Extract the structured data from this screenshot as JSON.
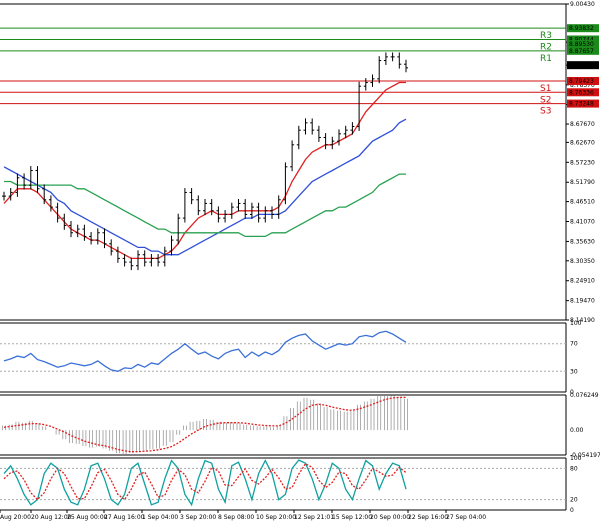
{
  "chart_data": [
    {
      "type": "line",
      "panel": "price",
      "y_ticks": [
        "9.00430",
        "8.9",
        "8.83740",
        "8.78370",
        "8.73010",
        "8.67670",
        "8.62670",
        "8.57230",
        "8.51790",
        "8.46510",
        "8.41070",
        "8.35630",
        "8.30350",
        "8.24910",
        "8.19470",
        "8.14190"
      ],
      "ylim": [
        8.1419,
        9.0043
      ],
      "x": [
        0,
        1,
        2,
        3,
        4,
        5,
        6,
        7,
        8,
        9,
        10,
        11,
        12,
        13,
        14,
        15,
        16,
        17,
        18,
        19,
        20,
        21,
        22,
        23,
        24,
        25,
        26,
        27,
        28,
        29,
        30,
        31,
        32,
        33,
        34,
        35,
        36,
        37,
        38,
        39,
        40,
        41,
        42,
        43,
        44,
        45,
        46,
        47,
        48,
        49,
        50,
        51,
        52,
        53,
        54,
        55,
        56,
        57,
        58,
        59,
        60
      ],
      "series": [
        {
          "role": "price",
          "color": "#000000",
          "values": [
            8.48,
            8.49,
            8.53,
            8.51,
            8.55,
            8.5,
            8.47,
            8.45,
            8.42,
            8.4,
            8.38,
            8.39,
            8.37,
            8.36,
            8.38,
            8.35,
            8.33,
            8.31,
            8.3,
            8.29,
            8.32,
            8.3,
            8.31,
            8.3,
            8.33,
            8.36,
            8.42,
            8.49,
            8.47,
            8.44,
            8.46,
            8.44,
            8.42,
            8.43,
            8.45,
            8.46,
            8.43,
            8.45,
            8.42,
            8.44,
            8.43,
            8.47,
            8.56,
            8.62,
            8.66,
            8.68,
            8.66,
            8.64,
            8.62,
            8.63,
            8.65,
            8.66,
            8.67,
            8.78,
            8.79,
            8.8,
            8.85,
            8.86,
            8.86,
            8.84,
            8.83
          ]
        },
        {
          "role": "ma-fast",
          "color": "#e02020",
          "values": [
            8.46,
            8.48,
            8.5,
            8.5,
            8.5,
            8.49,
            8.47,
            8.45,
            8.43,
            8.41,
            8.39,
            8.38,
            8.37,
            8.36,
            8.36,
            8.35,
            8.34,
            8.33,
            8.32,
            8.31,
            8.31,
            8.31,
            8.31,
            8.31,
            8.32,
            8.33,
            8.35,
            8.38,
            8.4,
            8.42,
            8.43,
            8.44,
            8.43,
            8.43,
            8.43,
            8.44,
            8.44,
            8.44,
            8.44,
            8.44,
            8.44,
            8.45,
            8.48,
            8.52,
            8.55,
            8.58,
            8.6,
            8.61,
            8.62,
            8.62,
            8.63,
            8.64,
            8.65,
            8.68,
            8.71,
            8.73,
            8.75,
            8.77,
            8.78,
            8.79,
            8.79
          ]
        },
        {
          "role": "ma-mid",
          "color": "#3050d8",
          "values": [
            8.56,
            8.55,
            8.54,
            8.53,
            8.52,
            8.51,
            8.5,
            8.49,
            8.47,
            8.46,
            8.44,
            8.43,
            8.42,
            8.41,
            8.4,
            8.39,
            8.38,
            8.37,
            8.36,
            8.35,
            8.34,
            8.34,
            8.33,
            8.33,
            8.32,
            8.32,
            8.32,
            8.33,
            8.34,
            8.35,
            8.36,
            8.37,
            8.38,
            8.39,
            8.4,
            8.41,
            8.42,
            8.42,
            8.43,
            8.43,
            8.43,
            8.43,
            8.44,
            8.46,
            8.48,
            8.5,
            8.52,
            8.53,
            8.54,
            8.55,
            8.56,
            8.57,
            8.58,
            8.59,
            8.61,
            8.63,
            8.64,
            8.65,
            8.66,
            8.68,
            8.69
          ]
        },
        {
          "role": "ma-slow",
          "color": "#28a050",
          "values": [
            8.52,
            8.52,
            8.51,
            8.51,
            8.51,
            8.51,
            8.51,
            8.51,
            8.51,
            8.51,
            8.51,
            8.5,
            8.5,
            8.49,
            8.48,
            8.47,
            8.46,
            8.45,
            8.44,
            8.43,
            8.42,
            8.41,
            8.4,
            8.39,
            8.39,
            8.38,
            8.38,
            8.38,
            8.38,
            8.38,
            8.38,
            8.38,
            8.38,
            8.38,
            8.38,
            8.38,
            8.37,
            8.37,
            8.37,
            8.37,
            8.38,
            8.38,
            8.38,
            8.39,
            8.4,
            8.41,
            8.42,
            8.43,
            8.44,
            8.44,
            8.45,
            8.45,
            8.46,
            8.47,
            8.48,
            8.49,
            8.51,
            8.52,
            8.53,
            8.54,
            8.54
          ]
        }
      ],
      "levels": [
        {
          "label": "R3",
          "value": 8.9383,
          "color": "#1a8a1a",
          "tag": "8.93832"
        },
        {
          "label": "R2",
          "value": 8.9074,
          "color": "#1a8a1a",
          "tag": "8.90744"
        },
        {
          "label": "R1",
          "value": 8.8765,
          "color": "#1a8a1a",
          "tag": "8.87657"
        },
        {
          "label": "S1",
          "value": 8.7942,
          "color": "#d01010",
          "tag": "8.79423"
        },
        {
          "label": "S2",
          "value": 8.7634,
          "color": "#d01010",
          "tag": "8.76336"
        },
        {
          "label": "S3",
          "value": 8.7325,
          "color": "#d01010",
          "tag": "8.73248"
        }
      ],
      "extra_tags": [
        {
          "value": 8.8953,
          "text": "8.89530",
          "color": "#1a8a1a"
        },
        {
          "value": 8.8374,
          "text": "8.83740",
          "color": "#000000"
        }
      ],
      "grid": false
    },
    {
      "type": "line",
      "panel": "rsi",
      "ylim": [
        0,
        100
      ],
      "y_ticks": [
        "100",
        "70",
        "30",
        "0"
      ],
      "levels": [
        70,
        30
      ],
      "series": [
        {
          "color": "#3a70d8",
          "values": [
            45,
            48,
            52,
            50,
            56,
            47,
            44,
            40,
            36,
            38,
            42,
            40,
            38,
            40,
            45,
            38,
            32,
            30,
            35,
            34,
            40,
            36,
            42,
            40,
            48,
            56,
            62,
            70,
            62,
            55,
            58,
            52,
            48,
            56,
            60,
            62,
            50,
            58,
            52,
            58,
            54,
            60,
            72,
            78,
            82,
            84,
            74,
            68,
            62,
            66,
            70,
            68,
            70,
            80,
            82,
            80,
            86,
            88,
            84,
            78,
            72
          ]
        }
      ]
    },
    {
      "type": "bar",
      "panel": "macd",
      "ylim": [
        -0.054197,
        0.076249
      ],
      "y_ticks": [
        "0.076249",
        "0.00",
        "-0.054197"
      ],
      "series": [
        {
          "role": "histogram",
          "color": "#999999",
          "values": [
            0.01,
            0.012,
            0.018,
            0.016,
            0.02,
            0.014,
            0.008,
            0.0,
            -0.01,
            -0.02,
            -0.028,
            -0.03,
            -0.035,
            -0.038,
            -0.036,
            -0.04,
            -0.045,
            -0.05,
            -0.052,
            -0.05,
            -0.046,
            -0.045,
            -0.042,
            -0.04,
            -0.034,
            -0.026,
            -0.01,
            0.01,
            0.018,
            0.02,
            0.024,
            0.022,
            0.018,
            0.016,
            0.016,
            0.015,
            0.012,
            0.01,
            0.008,
            0.008,
            0.006,
            0.01,
            0.03,
            0.048,
            0.062,
            0.07,
            0.066,
            0.058,
            0.05,
            0.045,
            0.042,
            0.04,
            0.042,
            0.055,
            0.062,
            0.068,
            0.074,
            0.076,
            0.075,
            0.072,
            0.068
          ]
        },
        {
          "role": "signal",
          "color": "#e02020",
          "values": [
            0.006,
            0.008,
            0.01,
            0.012,
            0.014,
            0.014,
            0.012,
            0.008,
            0.002,
            -0.004,
            -0.012,
            -0.018,
            -0.024,
            -0.028,
            -0.032,
            -0.034,
            -0.038,
            -0.042,
            -0.045,
            -0.047,
            -0.047,
            -0.046,
            -0.045,
            -0.043,
            -0.04,
            -0.036,
            -0.028,
            -0.018,
            -0.008,
            0.0,
            0.008,
            0.012,
            0.015,
            0.016,
            0.016,
            0.016,
            0.015,
            0.013,
            0.011,
            0.01,
            0.009,
            0.009,
            0.015,
            0.024,
            0.035,
            0.046,
            0.054,
            0.056,
            0.054,
            0.05,
            0.047,
            0.044,
            0.043,
            0.046,
            0.051,
            0.056,
            0.062,
            0.067,
            0.07,
            0.071,
            0.071
          ]
        }
      ]
    },
    {
      "type": "line",
      "panel": "stochastic",
      "ylim": [
        0,
        100
      ],
      "y_ticks": [
        "100",
        "80",
        "20",
        "0"
      ],
      "levels": [
        80,
        20
      ],
      "series": [
        {
          "role": "main",
          "color": "#10a0a0",
          "values": [
            70,
            85,
            60,
            30,
            10,
            20,
            70,
            90,
            80,
            40,
            15,
            10,
            40,
            85,
            90,
            60,
            20,
            10,
            30,
            80,
            90,
            50,
            10,
            15,
            60,
            95,
            80,
            30,
            10,
            60,
            95,
            90,
            40,
            15,
            85,
            92,
            60,
            20,
            70,
            95,
            70,
            20,
            30,
            80,
            96,
            90,
            60,
            20,
            50,
            90,
            80,
            40,
            20,
            60,
            95,
            85,
            40,
            70,
            90,
            85,
            40
          ]
        },
        {
          "role": "signal",
          "color": "#e02020",
          "values": [
            60,
            72,
            75,
            58,
            33,
            20,
            33,
            60,
            80,
            70,
            45,
            22,
            22,
            45,
            72,
            78,
            57,
            30,
            20,
            40,
            67,
            73,
            50,
            25,
            28,
            57,
            78,
            68,
            40,
            33,
            55,
            82,
            75,
            48,
            47,
            64,
            79,
            57,
            50,
            62,
            78,
            62,
            40,
            43,
            69,
            89,
            82,
            57,
            43,
            53,
            73,
            70,
            47,
            40,
            58,
            80,
            73,
            65,
            67,
            82,
            72
          ]
        }
      ]
    }
  ],
  "x_labels": [
    "Aug 20:00",
    "20 Aug 12:00",
    "25 Aug 00:00",
    "27 Aug 16:00",
    "1 Sep 04:00",
    "3 Sep 20:00",
    "8 Sep 08:00",
    "10 Sep 20:00",
    "12 Sep 21:01",
    "15 Sep 12:00",
    "20 Sep 00:00",
    "22 Sep 16:00",
    "27 Sep 04:00"
  ]
}
